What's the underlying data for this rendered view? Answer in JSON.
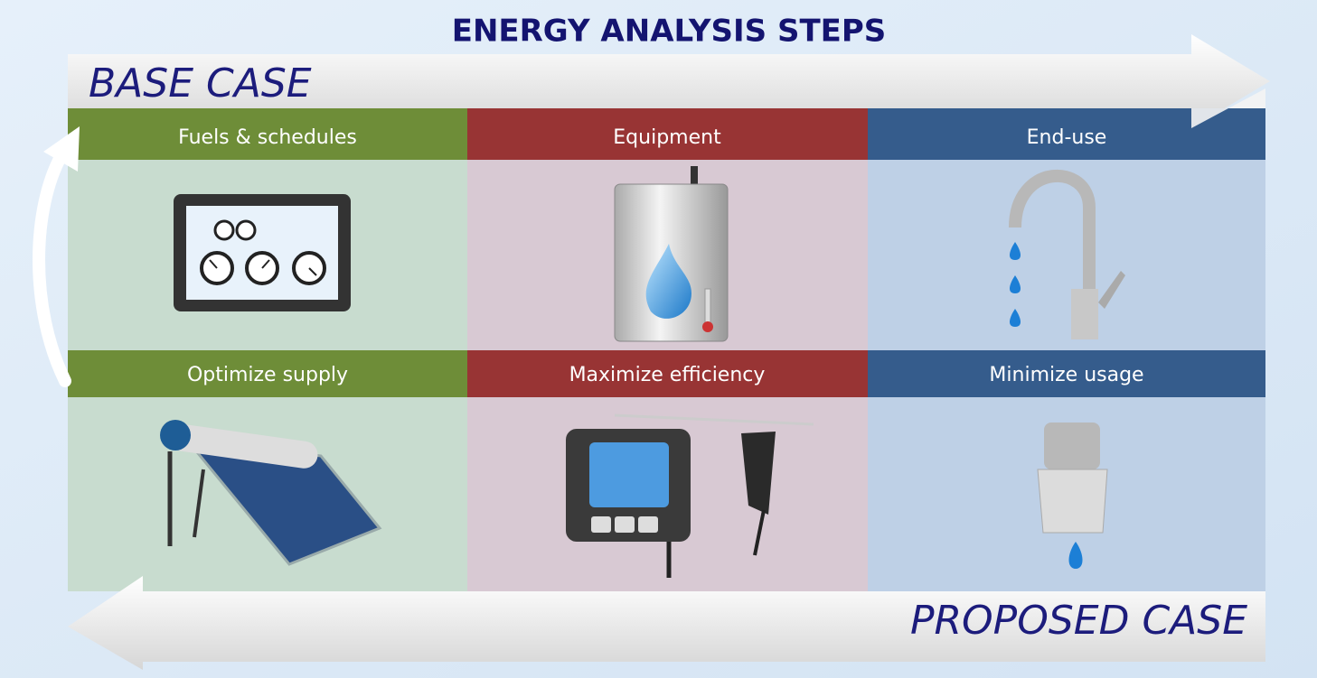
{
  "title": "ENERGY ANALYSIS STEPS",
  "base_case": "BASE CASE",
  "proposed_case": "PROPOSED CASE",
  "rows": [
    {
      "cells": [
        {
          "label": "Fuels & schedules"
        },
        {
          "label": "Equipment"
        },
        {
          "label": "End-use"
        }
      ]
    },
    {
      "cells": [
        {
          "label": "Optimize supply"
        },
        {
          "label": "Maximize efficiency"
        },
        {
          "label": "Minimize usage"
        }
      ]
    }
  ]
}
